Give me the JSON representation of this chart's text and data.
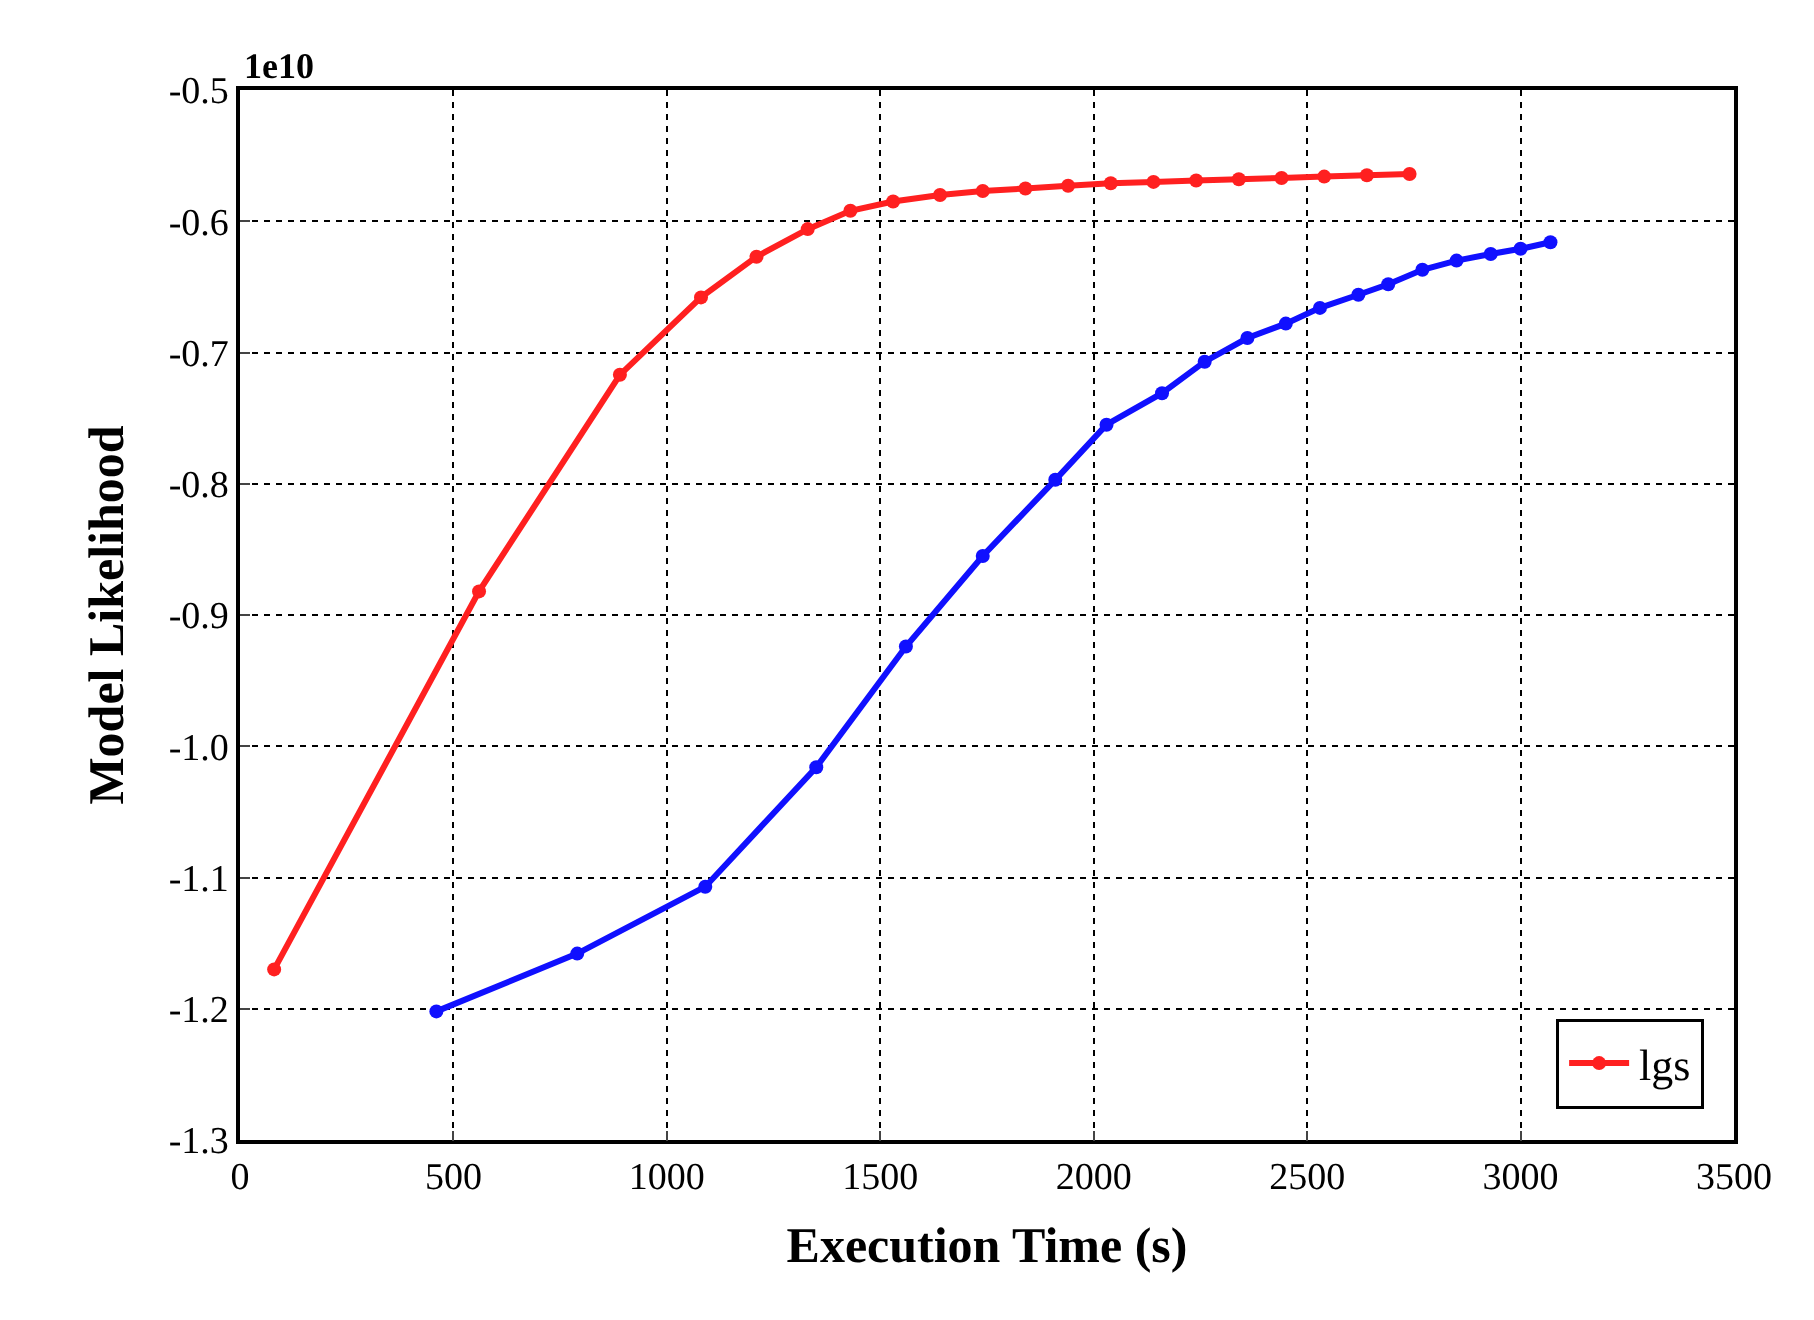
{
  "chart_data": {
    "type": "line",
    "xlabel": "Execution Time (s)",
    "ylabel": "Model Likelihood",
    "annotations": [
      "1e10"
    ],
    "series": [
      {
        "name": "lgs",
        "color": "#ff2020",
        "x": [
          80,
          560,
          890,
          1080,
          1210,
          1330,
          1430,
          1530,
          1640,
          1740,
          1840,
          1940,
          2040,
          2140,
          2240,
          2340,
          2440,
          2540,
          2640,
          2740
        ],
        "values": [
          -1.17,
          -0.882,
          -0.717,
          -0.658,
          -0.627,
          -0.606,
          -0.592,
          -0.585,
          -0.58,
          -0.577,
          -0.575,
          -0.573,
          -0.571,
          -0.57,
          -0.569,
          -0.568,
          -0.567,
          -0.566,
          -0.565,
          -0.564
        ]
      },
      {
        "color": "#1010ff",
        "x": [
          460,
          790,
          1090,
          1350,
          1560,
          1740,
          1910,
          2030,
          2160,
          2260,
          2360,
          2450,
          2530,
          2620,
          2690,
          2770,
          2850,
          2930,
          3000,
          3070
        ],
        "values": [
          -1.202,
          -1.158,
          -1.107,
          -1.016,
          -0.924,
          -0.855,
          -0.797,
          -0.755,
          -0.731,
          -0.707,
          -0.689,
          -0.678,
          -0.666,
          -0.656,
          -0.648,
          -0.637,
          -0.63,
          -0.625,
          -0.621,
          -0.616
        ]
      }
    ],
    "xlim": [
      0,
      3500
    ],
    "xticks": [
      0,
      500,
      1000,
      1500,
      2000,
      2500,
      3000,
      3500
    ],
    "ylim": [
      -1.3,
      -0.5
    ],
    "yticks": [
      -1.3,
      -1.2,
      -1.1,
      {
        "value": -1.0,
        "label": "-1.0"
      },
      -0.9,
      -0.8,
      -0.7,
      -0.6,
      -0.5
    ],
    "grid": true,
    "legend": "bottom right",
    "marker": "circle",
    "line_style": "solid"
  }
}
